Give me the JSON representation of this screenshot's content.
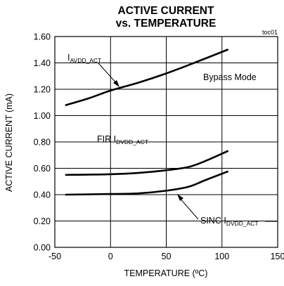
{
  "chart_data": {
    "type": "line",
    "title_line1": "ACTIVE CURRENT",
    "title_line2": "vs. TEMPERATURE",
    "figure_ref": "toc01",
    "xlabel": "TEMPERATURE (ºC)",
    "ylabel": "ACTIVE CURRENT (mA)",
    "xlim": [
      -50,
      150
    ],
    "ylim": [
      0,
      1.6
    ],
    "x_ticks": [
      -50,
      0,
      50,
      100,
      150
    ],
    "x_tick_labels": [
      "-50",
      "0",
      "50",
      "100",
      "150"
    ],
    "y_ticks": [
      0,
      0.2,
      0.4,
      0.6,
      0.8,
      1.0,
      1.2,
      1.4,
      1.6
    ],
    "y_tick_labels": [
      "0.00",
      "0.20",
      "0.40",
      "0.60",
      "0.80",
      "1.00",
      "1.20",
      "1.40",
      "1.60"
    ],
    "grid": true,
    "annotation_mode": "Bypass Mode",
    "series": [
      {
        "name": "I",
        "name_sub": "AVDD_ACT",
        "color": "#000000",
        "points": [
          [
            -40,
            1.08
          ],
          [
            -20,
            1.13
          ],
          [
            0,
            1.19
          ],
          [
            25,
            1.25
          ],
          [
            50,
            1.32
          ],
          [
            75,
            1.4
          ],
          [
            105,
            1.5
          ]
        ]
      },
      {
        "name": "FIR I",
        "name_sub": "DVDD_ACT",
        "color": "#000000",
        "points": [
          [
            -40,
            0.55
          ],
          [
            0,
            0.555
          ],
          [
            25,
            0.565
          ],
          [
            50,
            0.585
          ],
          [
            70,
            0.61
          ],
          [
            85,
            0.655
          ],
          [
            105,
            0.73
          ]
        ]
      },
      {
        "name": "SINC I",
        "name_sub": "DVDD_ACT",
        "color": "#000000",
        "points": [
          [
            -40,
            0.4
          ],
          [
            0,
            0.405
          ],
          [
            25,
            0.41
          ],
          [
            50,
            0.43
          ],
          [
            70,
            0.46
          ],
          [
            85,
            0.51
          ],
          [
            105,
            0.575
          ]
        ]
      }
    ]
  }
}
